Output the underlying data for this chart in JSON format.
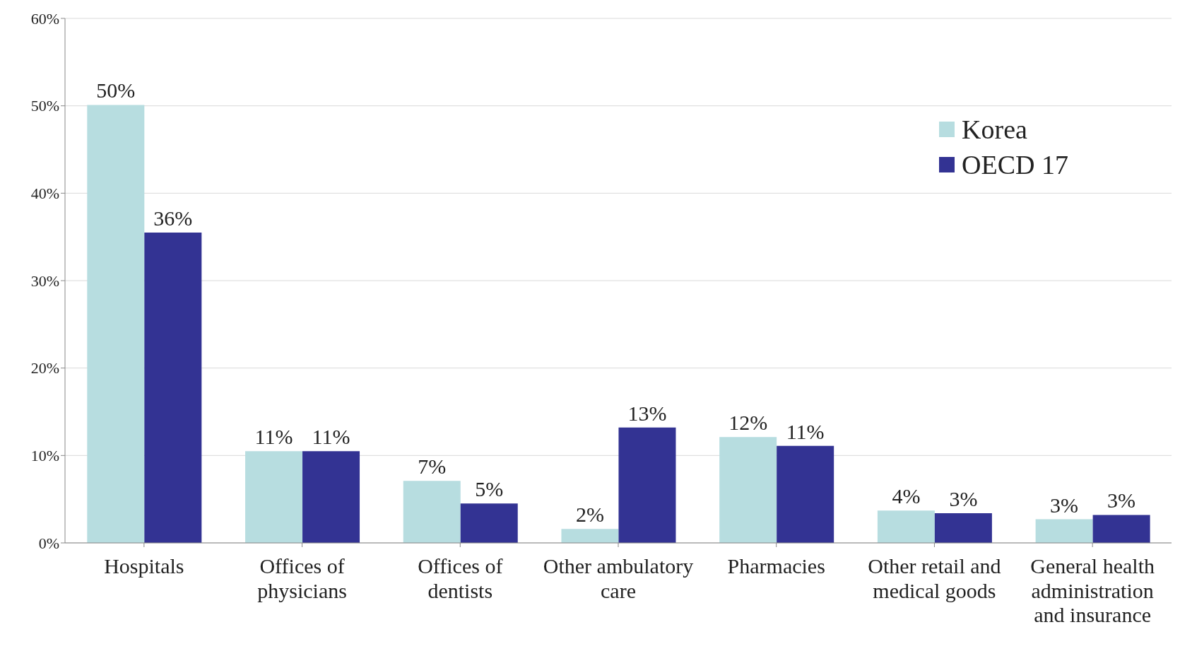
{
  "chart_data": {
    "type": "bar",
    "categories": [
      "Hospitals",
      "Offices of physicians",
      "Offices of dentists",
      "Other ambulatory care",
      "Pharmacies",
      "Other retail and medical goods",
      "General health administration and insurance"
    ],
    "series": [
      {
        "name": "Korea",
        "color": "#b7dde0",
        "values": [
          50.1,
          10.5,
          7.1,
          1.6,
          12.1,
          3.7,
          2.7
        ],
        "value_labels": [
          "50%",
          "11%",
          "7%",
          "2%",
          "12%",
          "4%",
          "3%"
        ]
      },
      {
        "name": "OECD 17",
        "color": "#333393",
        "values": [
          35.5,
          10.5,
          4.5,
          13.2,
          11.1,
          3.4,
          3.2
        ],
        "value_labels": [
          "36%",
          "11%",
          "5%",
          "13%",
          "11%",
          "3%",
          "3%"
        ]
      }
    ],
    "ylim": [
      0,
      60
    ],
    "yticks": [
      {
        "value": 0,
        "label": "0%"
      },
      {
        "value": 10,
        "label": "10%"
      },
      {
        "value": 20,
        "label": "20%"
      },
      {
        "value": 30,
        "label": "30%"
      },
      {
        "value": 40,
        "label": "40%"
      },
      {
        "value": 50,
        "label": "50%"
      },
      {
        "value": 60,
        "label": "60%"
      }
    ],
    "grid": "y",
    "legend": "top right"
  }
}
